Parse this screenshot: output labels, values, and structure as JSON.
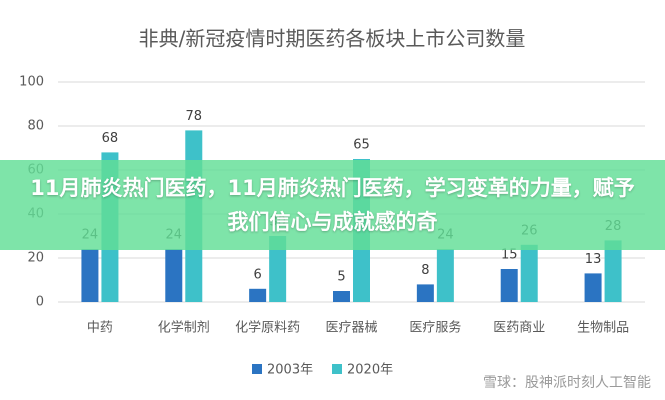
{
  "chart_data": {
    "type": "bar",
    "title": "非典/新冠疫情时期医药各板块上市公司数量",
    "categories": [
      "中药",
      "化学制剂",
      "化学原料药",
      "医疗器械",
      "医疗服务",
      "医药商业",
      "生物制品"
    ],
    "series": [
      {
        "name": "2003年",
        "color": "#2b74c2",
        "values": [
          24,
          24,
          6,
          5,
          8,
          15,
          13
        ]
      },
      {
        "name": "2020年",
        "color": "#3ec1c9",
        "values": [
          68,
          78,
          30,
          65,
          24,
          26,
          28
        ]
      }
    ],
    "ylim": [
      0,
      100
    ],
    "yticks": [
      0,
      20,
      40,
      60,
      80,
      100
    ],
    "grid": true,
    "legend": "bottom"
  },
  "overlay": {
    "headline": "11月肺炎热门医药，11月肺炎热门医药，学习变革的力量，赋予我们信心与成就感的奇"
  },
  "watermark": "雪球：股神派时刻人工智能"
}
